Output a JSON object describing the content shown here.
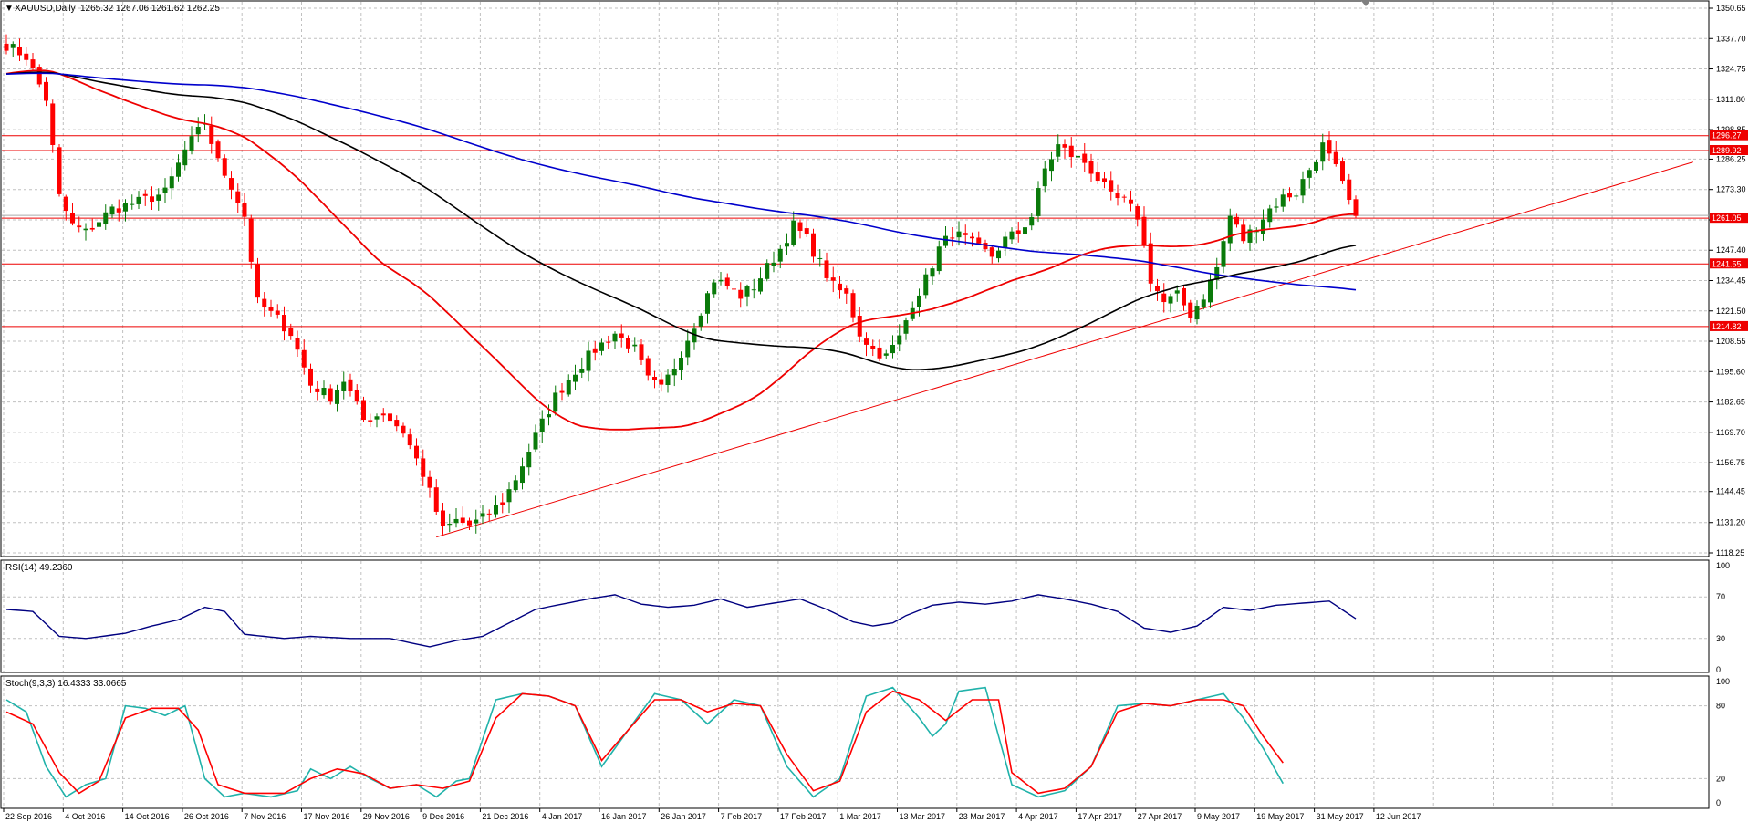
{
  "header": {
    "symbol": "XAUUSD,Daily",
    "ohlc": "1265.32 1267.06 1261.62 1262.25"
  },
  "colors": {
    "bull": "#0a7a0a",
    "bear": "#ff0000",
    "grid": "#c0c0c0",
    "axis": "#000000",
    "ma_red": "#ee0000",
    "ma_black": "#000000",
    "ma_blue": "#0000cc",
    "rsi": "#000080",
    "stoch_main": "#20b2aa",
    "stoch_signal": "#ff0000"
  },
  "chart_data": [
    {
      "type": "candlestick",
      "title": "XAUUSD,Daily",
      "ohlc_label": "1265.32 1267.06 1261.62 1262.25",
      "y_ticks": [
        "1350.65",
        "1337.70",
        "1324.75",
        "1311.80",
        "1298.85",
        "1286.25",
        "1273.30",
        "1260.35",
        "1247.40",
        "1234.45",
        "1221.50",
        "1208.55",
        "1195.60",
        "1182.65",
        "1169.70",
        "1156.75",
        "1144.45",
        "1131.20",
        "1118.25"
      ],
      "ylim": [
        1118.25,
        1350.65
      ],
      "x_labels": [
        "22 Sep 2016",
        "4 Oct 2016",
        "14 Oct 2016",
        "26 Oct 2016",
        "7 Nov 2016",
        "17 Nov 2016",
        "29 Nov 2016",
        "9 Dec 2016",
        "21 Dec 2016",
        "4 Jan 2017",
        "16 Jan 2017",
        "26 Jan 2017",
        "7 Feb 2017",
        "17 Feb 2017",
        "1 Mar 2017",
        "13 Mar 2017",
        "23 Mar 2017",
        "4 Apr 2017",
        "17 Apr 2017",
        "27 Apr 2017",
        "9 May 2017",
        "19 May 2017",
        "31 May 2017",
        "12 Jun 2017"
      ],
      "close_anchors": [
        [
          0,
          1335
        ],
        [
          3,
          1330
        ],
        [
          6,
          1312
        ],
        [
          8,
          1270
        ],
        [
          10,
          1258
        ],
        [
          12,
          1255
        ],
        [
          16,
          1265
        ],
        [
          20,
          1268
        ],
        [
          24,
          1272
        ],
        [
          27,
          1290
        ],
        [
          30,
          1302
        ],
        [
          32,
          1285
        ],
        [
          34,
          1275
        ],
        [
          36,
          1262
        ],
        [
          38,
          1225
        ],
        [
          41,
          1218
        ],
        [
          43,
          1212
        ],
        [
          46,
          1190
        ],
        [
          49,
          1185
        ],
        [
          51,
          1192
        ],
        [
          54,
          1175
        ],
        [
          57,
          1178
        ],
        [
          60,
          1170
        ],
        [
          63,
          1152
        ],
        [
          66,
          1128
        ],
        [
          68,
          1132
        ],
        [
          70,
          1130
        ],
        [
          72,
          1133
        ],
        [
          75,
          1140
        ],
        [
          77,
          1150
        ],
        [
          80,
          1168
        ],
        [
          83,
          1185
        ],
        [
          86,
          1196
        ],
        [
          89,
          1205
        ],
        [
          92,
          1212
        ],
        [
          95,
          1205
        ],
        [
          97,
          1192
        ],
        [
          99,
          1188
        ],
        [
          101,
          1198
        ],
        [
          103,
          1210
        ],
        [
          105,
          1222
        ],
        [
          107,
          1235
        ],
        [
          109,
          1232
        ],
        [
          111,
          1228
        ],
        [
          113,
          1232
        ],
        [
          115,
          1240
        ],
        [
          117,
          1248
        ],
        [
          119,
          1258
        ],
        [
          121,
          1252
        ],
        [
          123,
          1242
        ],
        [
          125,
          1232
        ],
        [
          127,
          1228
        ],
        [
          129,
          1212
        ],
        [
          131,
          1205
        ],
        [
          133,
          1202
        ],
        [
          135,
          1210
        ],
        [
          137,
          1225
        ],
        [
          139,
          1235
        ],
        [
          141,
          1248
        ],
        [
          143,
          1255
        ],
        [
          145,
          1252
        ],
        [
          147,
          1248
        ],
        [
          149,
          1245
        ],
        [
          151,
          1252
        ],
        [
          153,
          1255
        ],
        [
          155,
          1262
        ],
        [
          157,
          1282
        ],
        [
          159,
          1292
        ],
        [
          161,
          1288
        ],
        [
          163,
          1285
        ],
        [
          165,
          1278
        ],
        [
          167,
          1270
        ],
        [
          169,
          1268
        ],
        [
          171,
          1262
        ],
        [
          173,
          1235
        ],
        [
          175,
          1225
        ],
        [
          177,
          1228
        ],
        [
          179,
          1220
        ],
        [
          181,
          1228
        ],
        [
          183,
          1240
        ],
        [
          185,
          1262
        ],
        [
          187,
          1252
        ],
        [
          189,
          1258
        ],
        [
          191,
          1265
        ],
        [
          193,
          1270
        ],
        [
          195,
          1272
        ],
        [
          197,
          1282
        ],
        [
          199,
          1292
        ],
        [
          201,
          1282
        ],
        [
          203,
          1268
        ],
        [
          204,
          1262
        ]
      ],
      "moving_averages": [
        {
          "period": "50",
          "color": "#ee0000"
        },
        {
          "period": "100",
          "color": "#000000"
        },
        {
          "period": "200",
          "color": "#0000cc"
        }
      ],
      "levels": [
        {
          "price": 1296.27,
          "label": "1296.27"
        },
        {
          "price": 1289.92,
          "label": "1289.92"
        },
        {
          "price": 1261.05,
          "label": "1261.05"
        },
        {
          "price": 1241.55,
          "label": "1241.55"
        },
        {
          "price": 1214.82,
          "label": "1214.82"
        }
      ],
      "trendline": [
        [
          65,
          1125
        ],
        [
          255,
          1285
        ]
      ]
    },
    {
      "type": "line",
      "title": "RSI(14) 49.2360",
      "ylim": [
        0,
        100
      ],
      "y_ticks": [
        "100",
        "70",
        "30",
        "0"
      ],
      "anchors": [
        [
          0,
          58
        ],
        [
          4,
          56
        ],
        [
          8,
          32
        ],
        [
          12,
          30
        ],
        [
          18,
          35
        ],
        [
          22,
          42
        ],
        [
          26,
          48
        ],
        [
          30,
          60
        ],
        [
          33,
          56
        ],
        [
          36,
          34
        ],
        [
          42,
          30
        ],
        [
          46,
          32
        ],
        [
          52,
          30
        ],
        [
          58,
          30
        ],
        [
          64,
          22
        ],
        [
          68,
          28
        ],
        [
          72,
          32
        ],
        [
          76,
          45
        ],
        [
          80,
          58
        ],
        [
          84,
          63
        ],
        [
          88,
          68
        ],
        [
          92,
          72
        ],
        [
          96,
          63
        ],
        [
          100,
          60
        ],
        [
          104,
          62
        ],
        [
          108,
          68
        ],
        [
          112,
          60
        ],
        [
          116,
          64
        ],
        [
          120,
          68
        ],
        [
          124,
          58
        ],
        [
          128,
          46
        ],
        [
          131,
          42
        ],
        [
          134,
          45
        ],
        [
          136,
          52
        ],
        [
          140,
          62
        ],
        [
          144,
          65
        ],
        [
          148,
          63
        ],
        [
          152,
          66
        ],
        [
          156,
          72
        ],
        [
          160,
          68
        ],
        [
          164,
          63
        ],
        [
          168,
          56
        ],
        [
          172,
          40
        ],
        [
          176,
          36
        ],
        [
          180,
          42
        ],
        [
          184,
          60
        ],
        [
          188,
          57
        ],
        [
          192,
          62
        ],
        [
          196,
          64
        ],
        [
          200,
          66
        ],
        [
          204,
          49
        ]
      ]
    },
    {
      "type": "line",
      "title": "Stoch(9,3,3) 16.4333 33.0665",
      "ylim": [
        0,
        100
      ],
      "y_ticks": [
        "100",
        "80",
        "20",
        "0"
      ],
      "main_anchors": [
        [
          0,
          85
        ],
        [
          3,
          75
        ],
        [
          6,
          30
        ],
        [
          9,
          5
        ],
        [
          12,
          15
        ],
        [
          15,
          20
        ],
        [
          18,
          80
        ],
        [
          21,
          78
        ],
        [
          24,
          72
        ],
        [
          27,
          80
        ],
        [
          30,
          20
        ],
        [
          33,
          5
        ],
        [
          36,
          8
        ],
        [
          40,
          5
        ],
        [
          44,
          10
        ],
        [
          46,
          28
        ],
        [
          49,
          20
        ],
        [
          52,
          30
        ],
        [
          55,
          20
        ],
        [
          58,
          12
        ],
        [
          62,
          15
        ],
        [
          65,
          5
        ],
        [
          68,
          18
        ],
        [
          70,
          20
        ],
        [
          74,
          85
        ],
        [
          78,
          90
        ],
        [
          82,
          88
        ],
        [
          86,
          80
        ],
        [
          90,
          30
        ],
        [
          94,
          60
        ],
        [
          98,
          90
        ],
        [
          102,
          85
        ],
        [
          106,
          65
        ],
        [
          110,
          85
        ],
        [
          114,
          80
        ],
        [
          118,
          30
        ],
        [
          122,
          5
        ],
        [
          126,
          20
        ],
        [
          130,
          88
        ],
        [
          134,
          95
        ],
        [
          138,
          70
        ],
        [
          140,
          55
        ],
        [
          142,
          65
        ],
        [
          144,
          92
        ],
        [
          148,
          95
        ],
        [
          152,
          15
        ],
        [
          156,
          5
        ],
        [
          160,
          10
        ],
        [
          164,
          30
        ],
        [
          168,
          80
        ],
        [
          172,
          82
        ],
        [
          176,
          80
        ],
        [
          180,
          85
        ],
        [
          184,
          90
        ],
        [
          187,
          70
        ],
        [
          190,
          45
        ],
        [
          193,
          16
        ]
      ],
      "signal_anchors": [
        [
          0,
          75
        ],
        [
          4,
          65
        ],
        [
          8,
          25
        ],
        [
          11,
          8
        ],
        [
          14,
          18
        ],
        [
          18,
          70
        ],
        [
          22,
          78
        ],
        [
          26,
          78
        ],
        [
          29,
          60
        ],
        [
          32,
          15
        ],
        [
          36,
          8
        ],
        [
          42,
          8
        ],
        [
          46,
          20
        ],
        [
          50,
          28
        ],
        [
          54,
          24
        ],
        [
          58,
          12
        ],
        [
          62,
          15
        ],
        [
          66,
          12
        ],
        [
          70,
          18
        ],
        [
          74,
          70
        ],
        [
          78,
          90
        ],
        [
          82,
          88
        ],
        [
          86,
          80
        ],
        [
          90,
          35
        ],
        [
          94,
          60
        ],
        [
          98,
          85
        ],
        [
          102,
          85
        ],
        [
          106,
          75
        ],
        [
          110,
          82
        ],
        [
          114,
          80
        ],
        [
          118,
          40
        ],
        [
          122,
          10
        ],
        [
          126,
          18
        ],
        [
          130,
          75
        ],
        [
          134,
          92
        ],
        [
          138,
          85
        ],
        [
          142,
          68
        ],
        [
          146,
          85
        ],
        [
          150,
          85
        ],
        [
          152,
          25
        ],
        [
          156,
          8
        ],
        [
          160,
          12
        ],
        [
          164,
          30
        ],
        [
          168,
          75
        ],
        [
          172,
          82
        ],
        [
          176,
          80
        ],
        [
          180,
          85
        ],
        [
          184,
          85
        ],
        [
          187,
          80
        ],
        [
          190,
          55
        ],
        [
          193,
          33
        ]
      ]
    }
  ]
}
